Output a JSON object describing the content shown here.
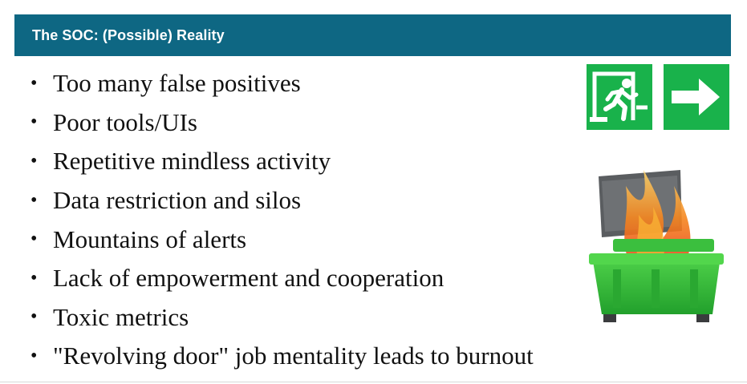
{
  "slide": {
    "title": "The SOC: (Possible) Reality",
    "bullet_glyph": "•",
    "bullets": [
      "Too many false positives",
      "Poor tools/UIs",
      "Repetitive mindless activity",
      "Data restriction and silos",
      "Mountains of alerts",
      "Lack of empowerment and cooperation",
      "Toxic metrics",
      "\"Revolving door\" job mentality leads to burnout"
    ]
  },
  "images": {
    "exit_sign": "exit-sign-icon",
    "dumpster_fire": "dumpster-fire-icon"
  },
  "colors": {
    "title_bar": "#0e6783",
    "title_text": "#ffffff",
    "exit_green": "#19b24b",
    "dumpster_green": "#2fbf3a"
  }
}
